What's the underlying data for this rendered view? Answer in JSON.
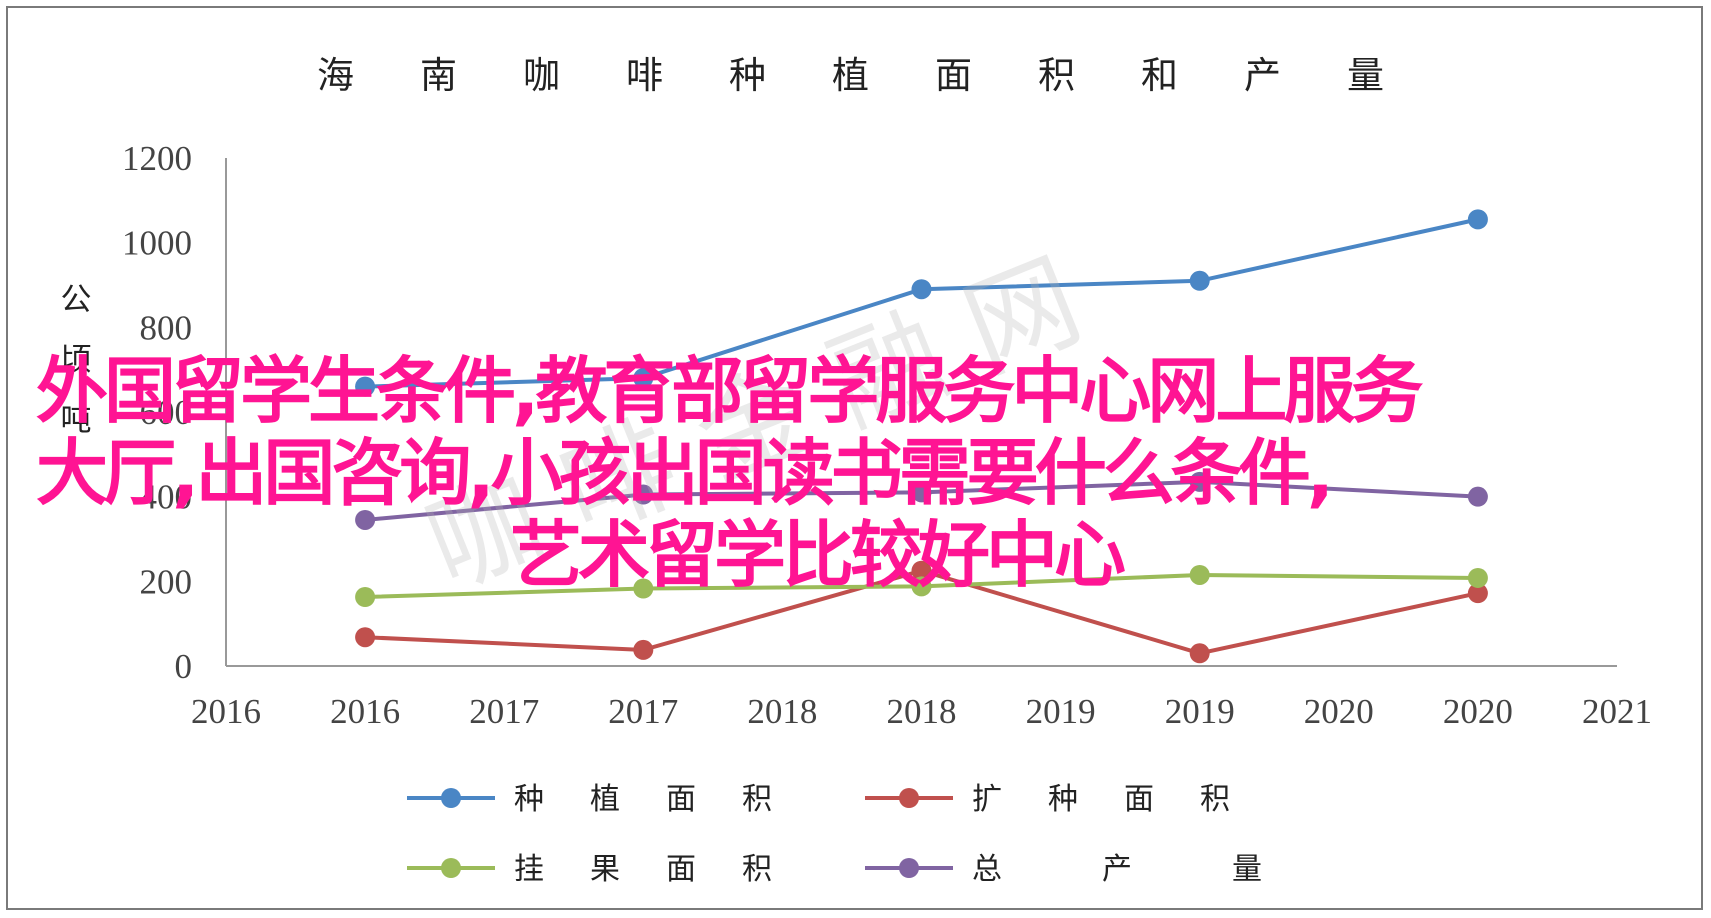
{
  "chart_data": {
    "type": "line",
    "title": "海南咖啡种植面积和产量",
    "ylabel": "公顷吨",
    "xlabel": "",
    "ylim": [
      0,
      1200
    ],
    "y_ticks": [
      0,
      200,
      400,
      600,
      800,
      1000,
      1200
    ],
    "x_tick_labels": [
      "2016",
      "2016",
      "2017",
      "2017",
      "2018",
      "2018",
      "2019",
      "2019",
      "2020",
      "2020",
      "2021"
    ],
    "grid": false,
    "legend_position": "bottom",
    "series": [
      {
        "name": "种植面积",
        "color": "#4a86c5",
        "points": [
          [
            1,
            660
          ],
          [
            3,
            680
          ],
          [
            5,
            890
          ],
          [
            7,
            910
          ],
          [
            9,
            1055
          ]
        ]
      },
      {
        "name": "扩种面积",
        "color": "#c0504d",
        "points": [
          [
            1,
            68
          ],
          [
            3,
            38
          ],
          [
            5,
            225
          ],
          [
            7,
            30
          ],
          [
            9,
            172
          ]
        ]
      },
      {
        "name": "挂果面积",
        "color": "#9bbb59",
        "points": [
          [
            1,
            163
          ],
          [
            3,
            183
          ],
          [
            5,
            188
          ],
          [
            7,
            215
          ],
          [
            9,
            208
          ]
        ]
      },
      {
        "name": "总产量",
        "color": "#8064a2",
        "points": [
          [
            1,
            345
          ],
          [
            3,
            405
          ],
          [
            5,
            410
          ],
          [
            7,
            435
          ],
          [
            9,
            400
          ]
        ]
      }
    ]
  },
  "overlay": {
    "line1": "外国留学生条件,教育部留学服务中心网上服务",
    "line2": "大厅,出国咨询,小孩出国读书需要什么条件,",
    "line3": "艺术留学比较好中心"
  },
  "watermark": "咖 啡 金 融 网"
}
